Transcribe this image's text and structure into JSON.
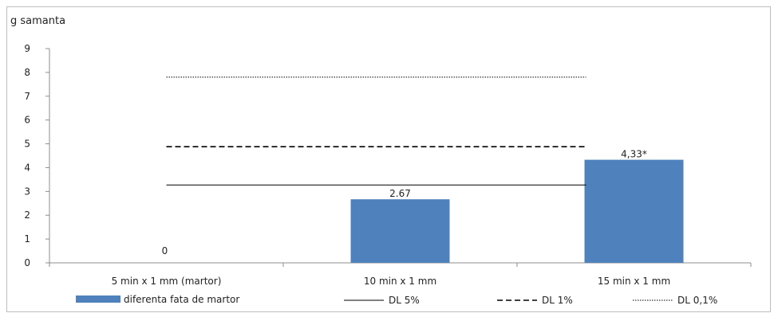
{
  "chart_data": {
    "type": "bar",
    "ylabel": "g samanta",
    "ylim": [
      0,
      9
    ],
    "yticks": [
      0,
      1,
      2,
      3,
      4,
      5,
      6,
      7,
      8,
      9
    ],
    "grid": false,
    "categories": [
      "5 min x 1 mm (martor)",
      "10 min x 1 mm",
      "15 min x 1 mm"
    ],
    "series": [
      {
        "name": "diferenta fata de martor",
        "type": "bar",
        "color": "#4f81bd",
        "values": [
          0,
          2.67,
          4.33
        ],
        "labels": [
          "0",
          "2.67",
          "4,33*"
        ]
      }
    ],
    "reference_lines": [
      {
        "name": "DL 5%",
        "value": 3.27,
        "style": "solid",
        "color": "#000000"
      },
      {
        "name": "DL 1%",
        "value": 4.88,
        "style": "dashed",
        "color": "#000000"
      },
      {
        "name": "DL 0,1%",
        "value": 7.8,
        "style": "dotted",
        "color": "#000000"
      }
    ],
    "legend_position": "bottom"
  }
}
